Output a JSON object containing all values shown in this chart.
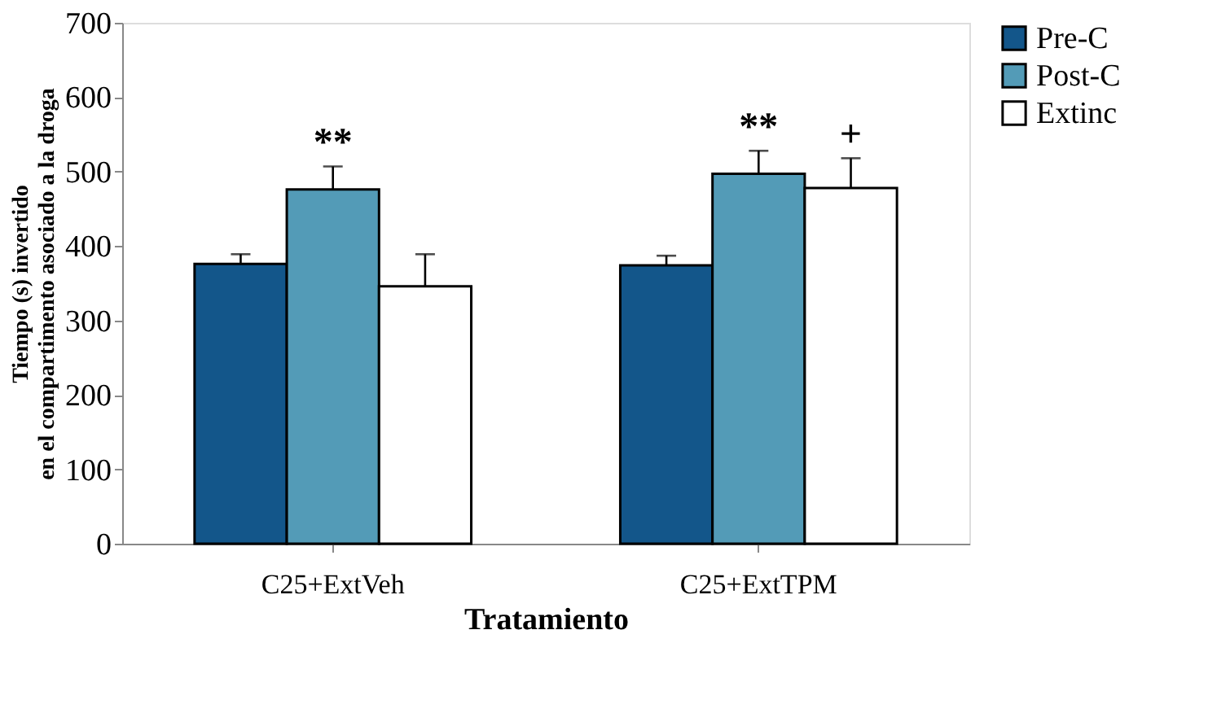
{
  "chart_data": {
    "type": "bar",
    "xlabel": "Tratamiento",
    "ylabel": "Tiempo (s)  invertido en el compartimento asociado a la droga",
    "categories": [
      "C25+ExtVeh",
      "C25+ExtTPM"
    ],
    "series": [
      {
        "name": "Pre-C",
        "color": "#13568a",
        "values": [
          376,
          374
        ],
        "errors": [
          13,
          13
        ]
      },
      {
        "name": "Post-C",
        "color": "#539bb7",
        "values": [
          476,
          497
        ],
        "errors": [
          31,
          31
        ]
      },
      {
        "name": "Extinc",
        "color": "#ffffff",
        "values": [
          346,
          478
        ],
        "errors": [
          43,
          40
        ]
      }
    ],
    "ylim": [
      0,
      700
    ],
    "yticks": [
      0,
      100,
      200,
      300,
      400,
      500,
      600,
      700
    ],
    "grid": false,
    "legend": "right",
    "annotations": [
      {
        "text": "**",
        "x": "C25+ExtVeh",
        "y": 507
      },
      {
        "text": "**",
        "x": "C25+ExtTPM",
        "y": 528
      },
      {
        "text": "+",
        "x": "C25+ExtTPM",
        "y": 518
      }
    ]
  }
}
